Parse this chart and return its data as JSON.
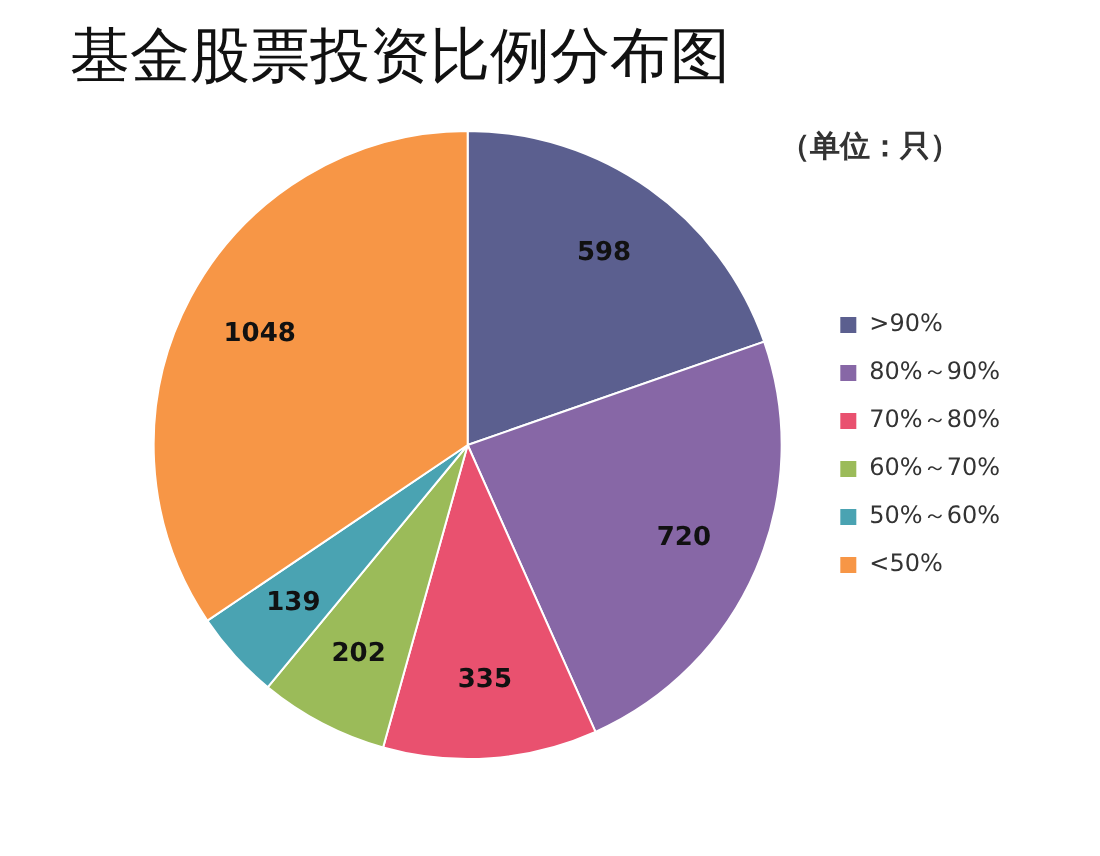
{
  "chart_data": {
    "type": "pie",
    "title": "基金股票投资比例分布图",
    "annotations": [
      "（单位：只）"
    ],
    "categories": [
      ">90%",
      "80%～90%",
      "70%～80%",
      "60%～70%",
      "50%～60%",
      "<50%"
    ],
    "values": [
      598,
      720,
      335,
      202,
      139,
      1048
    ],
    "colors": [
      "#5b5f8f",
      "#8767a6",
      "#e9516f",
      "#9bbb59",
      "#4aa3b2",
      "#f79646"
    ],
    "data_labels": true,
    "legend": "right"
  }
}
